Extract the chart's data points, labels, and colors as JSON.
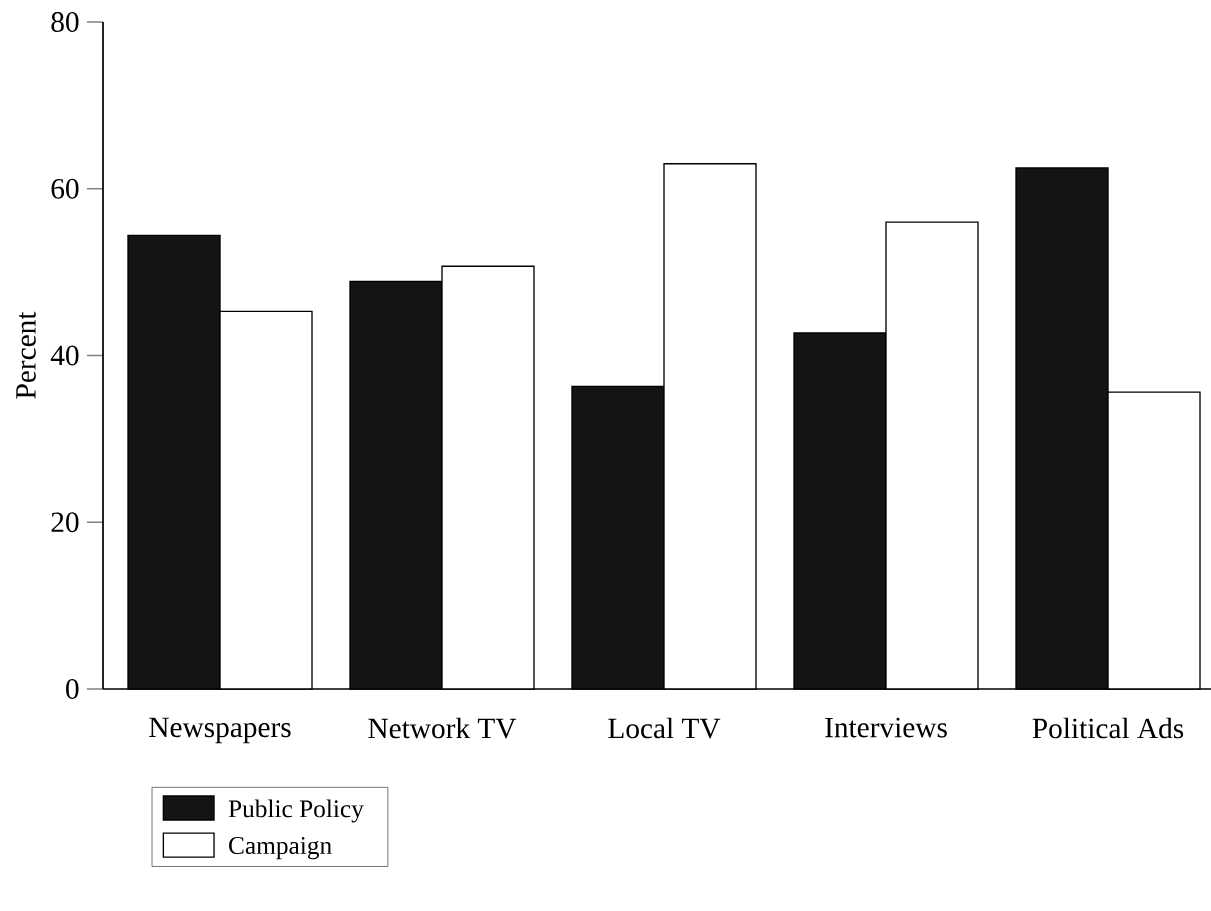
{
  "chart_data": {
    "type": "bar",
    "ylabel": "Percent",
    "categories": [
      "Newspapers",
      "Network TV",
      "Local TV",
      "Interviews",
      "Political Ads"
    ],
    "series": [
      {
        "name": "Public Policy",
        "color": "#141414",
        "values": [
          54.4,
          48.9,
          36.3,
          42.7,
          62.5
        ]
      },
      {
        "name": "Campaign",
        "color": "#ffffff",
        "values": [
          45.3,
          50.7,
          63.0,
          56.0,
          35.6
        ]
      }
    ],
    "ylim": [
      0,
      80
    ],
    "yticks": [
      0,
      20,
      40,
      60,
      80
    ],
    "legend": "bottom"
  }
}
